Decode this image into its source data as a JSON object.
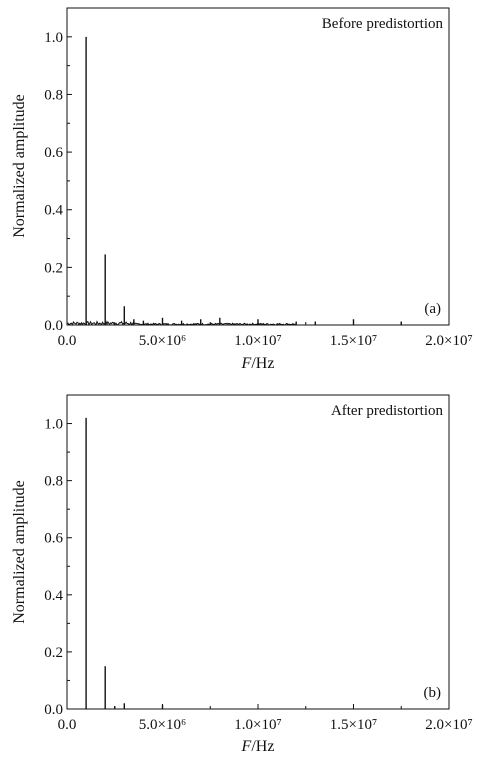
{
  "chart_data": [
    {
      "type": "bar",
      "title": "Before predistortion",
      "panel_label": "(a)",
      "xlabel": {
        "italic": "F",
        "rest": "/Hz"
      },
      "ylabel": "Normalized amplitude",
      "xlim": [
        0,
        20000000
      ],
      "ylim": [
        0,
        1.1
      ],
      "xticks": [
        0,
        5000000,
        10000000,
        15000000,
        20000000
      ],
      "xtick_labels": [
        "0.0",
        "5.0×10⁶",
        "1.0×10⁷",
        "1.5×10⁷",
        "2.0×10⁷"
      ],
      "yticks": [
        0,
        0.2,
        0.4,
        0.6,
        0.8,
        1.0
      ],
      "ytick_labels": [
        "0.0",
        "0.2",
        "0.4",
        "0.6",
        "0.8",
        "1.0"
      ],
      "grid": false,
      "noise_floor": 0.012,
      "x": [
        1000000,
        2000000,
        3000000,
        3500000,
        4000000,
        5000000,
        6000000,
        7000000,
        8000000,
        10000000,
        12000000,
        13000000,
        15000000,
        17500000
      ],
      "values": [
        1.0,
        0.245,
        0.065,
        0.02,
        0.015,
        0.025,
        0.015,
        0.02,
        0.025,
        0.02,
        0.012,
        0.012,
        0.02,
        0.012
      ]
    },
    {
      "type": "bar",
      "title": "After predistortion",
      "panel_label": "(b)",
      "xlabel": {
        "italic": "F",
        "rest": "/Hz"
      },
      "ylabel": "Normalized amplitude",
      "xlim": [
        0,
        20000000
      ],
      "ylim": [
        0,
        1.1
      ],
      "xticks": [
        0,
        5000000,
        10000000,
        15000000,
        20000000
      ],
      "xtick_labels": [
        "0.0",
        "5.0×10⁶",
        "1.0×10⁷",
        "1.5×10⁷",
        "2.0×10⁷"
      ],
      "yticks": [
        0,
        0.2,
        0.4,
        0.6,
        0.8,
        1.0
      ],
      "ytick_labels": [
        "0.0",
        "0.2",
        "0.4",
        "0.6",
        "0.8",
        "1.0"
      ],
      "grid": false,
      "noise_floor": 0,
      "x": [
        1000000,
        2000000,
        2500000,
        3000000,
        5000000
      ],
      "values": [
        1.02,
        0.15,
        0.01,
        0.02,
        0.015
      ]
    }
  ]
}
